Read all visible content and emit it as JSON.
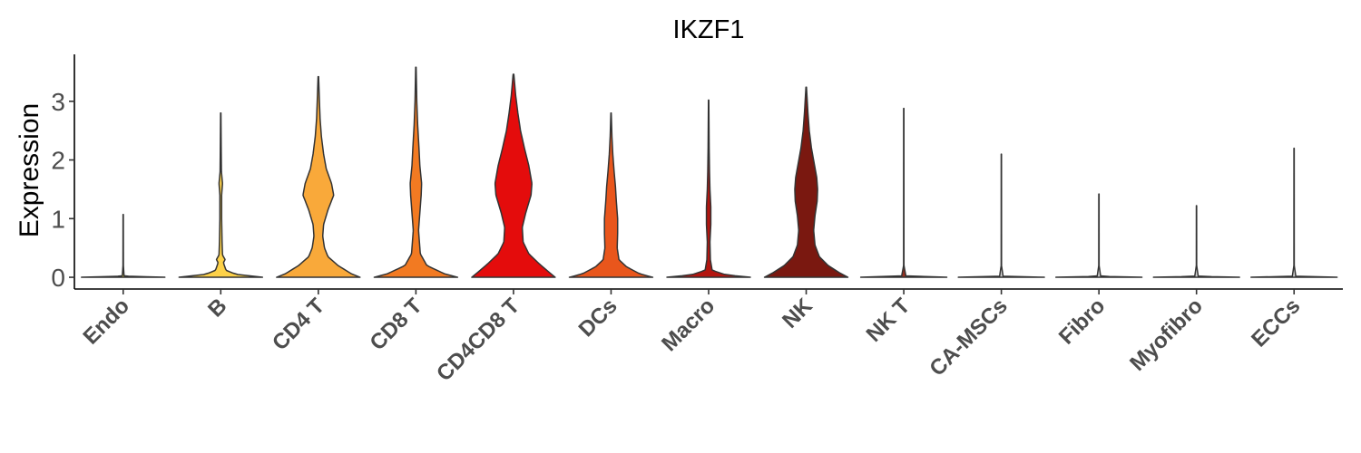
{
  "chart_data": {
    "type": "violin",
    "title": "IKZF1",
    "xlabel": "",
    "ylabel": "Expression",
    "ylim": [
      -0.2,
      3.8
    ],
    "yticks": [
      0,
      1,
      2,
      3
    ],
    "grid": false,
    "legend": "none",
    "categories": [
      "Endo",
      "B",
      "CD4 T",
      "CD8 T",
      "CD4CD8 T",
      "DCs",
      "Macro",
      "NK",
      "NK T",
      "CA-MSCs",
      "Fibro",
      "Myofibro",
      "ECCs"
    ],
    "series": [
      {
        "category": "Endo",
        "color": "#fde94e",
        "max": 1.07,
        "profile": [
          [
            0,
            0.95
          ],
          [
            0.02,
            0.02
          ],
          [
            0.2,
            0.005
          ],
          [
            1.07,
            0.003
          ]
        ]
      },
      {
        "category": "B",
        "color": "#fdd148",
        "max": 2.8,
        "profile": [
          [
            0,
            0.95
          ],
          [
            0.05,
            0.35
          ],
          [
            0.12,
            0.12
          ],
          [
            0.25,
            0.06
          ],
          [
            0.3,
            0.1
          ],
          [
            0.38,
            0.04
          ],
          [
            0.6,
            0.03
          ],
          [
            1.0,
            0.02
          ],
          [
            1.4,
            0.02
          ],
          [
            1.6,
            0.04
          ],
          [
            1.8,
            0.015
          ],
          [
            2.2,
            0.01
          ],
          [
            2.8,
            0.004
          ]
        ]
      },
      {
        "category": "CD4 T",
        "color": "#f9a93a",
        "max": 3.42,
        "profile": [
          [
            0,
            0.95
          ],
          [
            0.06,
            0.75
          ],
          [
            0.2,
            0.45
          ],
          [
            0.35,
            0.22
          ],
          [
            0.5,
            0.14
          ],
          [
            0.7,
            0.1
          ],
          [
            0.9,
            0.12
          ],
          [
            1.15,
            0.22
          ],
          [
            1.4,
            0.35
          ],
          [
            1.6,
            0.3
          ],
          [
            1.85,
            0.18
          ],
          [
            2.1,
            0.12
          ],
          [
            2.4,
            0.07
          ],
          [
            2.7,
            0.04
          ],
          [
            3.0,
            0.025
          ],
          [
            3.42,
            0.006
          ]
        ]
      },
      {
        "category": "CD8 T",
        "color": "#f27a22",
        "max": 3.58,
        "profile": [
          [
            0,
            0.95
          ],
          [
            0.06,
            0.65
          ],
          [
            0.2,
            0.25
          ],
          [
            0.4,
            0.1
          ],
          [
            0.8,
            0.06
          ],
          [
            1.1,
            0.09
          ],
          [
            1.4,
            0.12
          ],
          [
            1.6,
            0.13
          ],
          [
            1.9,
            0.09
          ],
          [
            2.2,
            0.07
          ],
          [
            2.6,
            0.04
          ],
          [
            3.0,
            0.02
          ],
          [
            3.58,
            0.005
          ]
        ]
      },
      {
        "category": "CD4CD8 T",
        "color": "#e40c0c",
        "max": 3.46,
        "profile": [
          [
            0,
            0.95
          ],
          [
            0.08,
            0.82
          ],
          [
            0.22,
            0.6
          ],
          [
            0.4,
            0.35
          ],
          [
            0.6,
            0.22
          ],
          [
            0.85,
            0.2
          ],
          [
            1.1,
            0.28
          ],
          [
            1.4,
            0.4
          ],
          [
            1.6,
            0.42
          ],
          [
            1.9,
            0.35
          ],
          [
            2.2,
            0.25
          ],
          [
            2.5,
            0.16
          ],
          [
            2.8,
            0.1
          ],
          [
            3.1,
            0.05
          ],
          [
            3.46,
            0.008
          ]
        ]
      },
      {
        "category": "DCs",
        "color": "#e9561c",
        "max": 2.8,
        "profile": [
          [
            0,
            0.95
          ],
          [
            0.06,
            0.65
          ],
          [
            0.18,
            0.35
          ],
          [
            0.3,
            0.18
          ],
          [
            0.5,
            0.14
          ],
          [
            0.75,
            0.15
          ],
          [
            1.0,
            0.15
          ],
          [
            1.3,
            0.12
          ],
          [
            1.55,
            0.1
          ],
          [
            1.8,
            0.07
          ],
          [
            2.1,
            0.04
          ],
          [
            2.4,
            0.02
          ],
          [
            2.8,
            0.004
          ]
        ]
      },
      {
        "category": "Macro",
        "color": "#b3150f",
        "max": 3.02,
        "profile": [
          [
            0,
            0.95
          ],
          [
            0.04,
            0.4
          ],
          [
            0.12,
            0.08
          ],
          [
            0.3,
            0.04
          ],
          [
            0.6,
            0.03
          ],
          [
            0.9,
            0.05
          ],
          [
            1.2,
            0.05
          ],
          [
            1.5,
            0.03
          ],
          [
            1.8,
            0.02
          ],
          [
            2.2,
            0.012
          ],
          [
            2.6,
            0.008
          ],
          [
            3.02,
            0.004
          ]
        ]
      },
      {
        "category": "NK",
        "color": "#7a1810",
        "max": 3.24,
        "profile": [
          [
            0,
            0.95
          ],
          [
            0.08,
            0.75
          ],
          [
            0.2,
            0.5
          ],
          [
            0.35,
            0.3
          ],
          [
            0.55,
            0.2
          ],
          [
            0.8,
            0.17
          ],
          [
            1.05,
            0.2
          ],
          [
            1.3,
            0.25
          ],
          [
            1.5,
            0.26
          ],
          [
            1.7,
            0.24
          ],
          [
            1.95,
            0.18
          ],
          [
            2.2,
            0.12
          ],
          [
            2.5,
            0.07
          ],
          [
            2.8,
            0.04
          ],
          [
            3.24,
            0.006
          ]
        ]
      },
      {
        "category": "NK T",
        "color": "#9a3020",
        "max": 2.88,
        "profile": [
          [
            0,
            0.98
          ],
          [
            0.015,
            0.05
          ],
          [
            0.2,
            0.004
          ],
          [
            2.88,
            0.003
          ]
        ]
      },
      {
        "category": "CA-MSCs",
        "color": "#d0d0d0",
        "max": 2.1,
        "profile": [
          [
            0,
            0.98
          ],
          [
            0.015,
            0.04
          ],
          [
            0.2,
            0.004
          ],
          [
            2.1,
            0.003
          ]
        ]
      },
      {
        "category": "Fibro",
        "color": "#d0d0d0",
        "max": 1.42,
        "profile": [
          [
            0,
            0.98
          ],
          [
            0.015,
            0.04
          ],
          [
            0.2,
            0.004
          ],
          [
            1.42,
            0.003
          ]
        ]
      },
      {
        "category": "Myofibro",
        "color": "#d0d0d0",
        "max": 1.22,
        "profile": [
          [
            0,
            0.98
          ],
          [
            0.015,
            0.04
          ],
          [
            0.2,
            0.004
          ],
          [
            1.22,
            0.003
          ]
        ]
      },
      {
        "category": "ECCs",
        "color": "#d0d0d0",
        "max": 2.2,
        "profile": [
          [
            0,
            0.98
          ],
          [
            0.015,
            0.04
          ],
          [
            0.2,
            0.004
          ],
          [
            2.2,
            0.003
          ]
        ]
      }
    ]
  }
}
